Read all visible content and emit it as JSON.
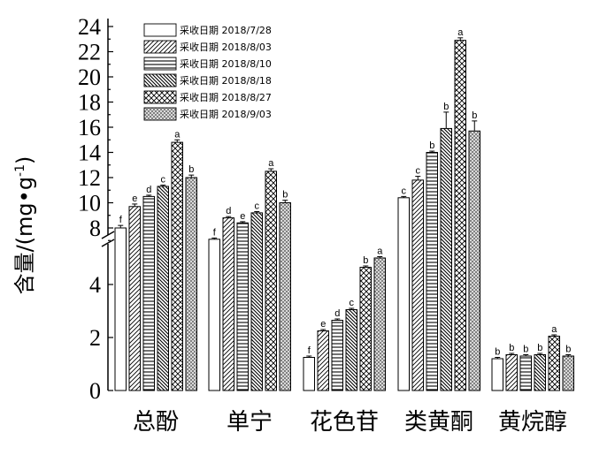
{
  "chart_data": {
    "type": "bar",
    "ylabel_main": "含量/",
    "ylabel_unit": "(mg•g",
    "ylabel_sup": "-1",
    "ylabel_close": ")",
    "categories": [
      "总酚",
      "单宁",
      "花色苷",
      "类黄酮",
      "黄烷醇"
    ],
    "series": [
      {
        "name": "采收日期 2018/7/28",
        "values": [
          8.0,
          7.1,
          1.25,
          10.4,
          1.2
        ],
        "errors": [
          0.2,
          0.1,
          0.05,
          0.1,
          0.05
        ],
        "letters": [
          "f",
          "f",
          "f",
          "c",
          "b"
        ],
        "pattern": "white"
      },
      {
        "name": "采收日期 2018/8/03",
        "values": [
          9.7,
          8.8,
          2.25,
          11.8,
          1.35
        ],
        "errors": [
          0.2,
          0.1,
          0.05,
          0.3,
          0.05
        ],
        "letters": [
          "e",
          "d",
          "e",
          "c",
          "b"
        ],
        "pattern": "diag"
      },
      {
        "name": "采收日期 2018/8/10",
        "values": [
          10.5,
          8.4,
          2.65,
          14.0,
          1.3
        ],
        "errors": [
          0.1,
          0.1,
          0.05,
          0.1,
          0.05
        ],
        "letters": [
          "d",
          "e",
          "d",
          "b",
          "b"
        ],
        "pattern": "horiz"
      },
      {
        "name": "采收日期 2018/8/18",
        "values": [
          11.3,
          9.2,
          3.05,
          15.9,
          1.35
        ],
        "errors": [
          0.1,
          0.1,
          0.05,
          1.3,
          0.05
        ],
        "letters": [
          "c",
          "c",
          "c",
          "b",
          "b"
        ],
        "pattern": "backdiag"
      },
      {
        "name": "采收日期 2018/8/27",
        "values": [
          14.8,
          12.5,
          4.65,
          22.9,
          2.05
        ],
        "errors": [
          0.2,
          0.2,
          0.05,
          0.2,
          0.05
        ],
        "letters": [
          "a",
          "a",
          "b",
          "a",
          "a"
        ],
        "pattern": "cross"
      },
      {
        "name": "采收日期 2018/9/03",
        "values": [
          12.0,
          10.0,
          5.0,
          15.7,
          1.3
        ],
        "errors": [
          0.2,
          0.2,
          0.05,
          0.8,
          0.05
        ],
        "letters": [
          "b",
          "b",
          "a",
          "b",
          "b"
        ],
        "pattern": "dense"
      }
    ],
    "y_axis_break": {
      "lower": [
        0,
        5.5
      ],
      "upper": [
        7,
        24
      ]
    },
    "y_ticks_lower": [
      0,
      2,
      4
    ],
    "y_ticks_upper": [
      8,
      10,
      12,
      14,
      16,
      18,
      20,
      22,
      24
    ],
    "legend_position": "top-left",
    "grid": false
  }
}
